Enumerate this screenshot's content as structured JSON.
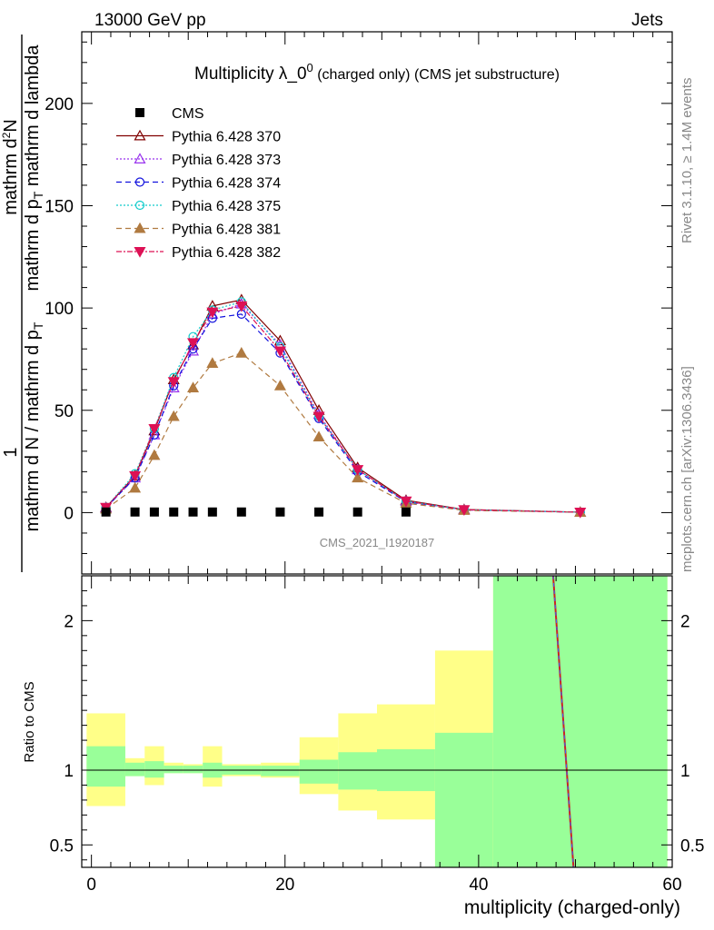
{
  "header": {
    "left": "13000 GeV pp",
    "right": "Jets"
  },
  "side_text": {
    "rivet": "Rivet 3.1.10, ≥ 1.4M events",
    "mcplots": "mcplots.cern.ch [arXiv:1306.3436]"
  },
  "watermark": "CMS_2021_I1920187",
  "chart_data": [
    {
      "type": "line",
      "title_main": "Multiplicity λ_0",
      "title_sup": "0",
      "title_small": " (charged only) (CMS jet substructure)",
      "ylabel": "1/(mathrm d N / mathrm d p_T) mathrm d²N/(mathrm d p_T mathrm d lambda)",
      "ylabel_numer_1": "1",
      "ylabel_denom_1": "mathrm d N / mathrm d p",
      "ylabel_numer_2": "mathrm d",
      "ylabel_numer_2_sup": "2",
      "ylabel_numer_2_tail": "N",
      "ylabel_denom_2": "mathrm d p",
      "ylabel_denom_2_tail": "mathrm d lambda",
      "sub_T": "T",
      "xlim": [
        -1,
        60
      ],
      "ylim": [
        -30,
        235
      ],
      "yticks": [
        0,
        50,
        100,
        150,
        200
      ],
      "series": [
        {
          "name": "CMS",
          "color": "#000000",
          "marker": "filled-square",
          "x": [
            1.5,
            4.5,
            6.5,
            8.5,
            10.5,
            12.5,
            15.5,
            19.5,
            23.5,
            27.5,
            32.5
          ],
          "y": [
            0.3,
            0.3,
            0.3,
            0.3,
            0.3,
            0.3,
            0.3,
            0.3,
            0.3,
            0.3,
            0.3
          ]
        },
        {
          "name": "Pythia 6.428 370",
          "color": "#800000",
          "marker": "open-triangle-up",
          "dash": "",
          "x": [
            1.5,
            4.5,
            6.5,
            8.5,
            10.5,
            12.5,
            15.5,
            19.5,
            23.5,
            27.5,
            32.5,
            38.5,
            50.5
          ],
          "y": [
            2.5,
            18,
            40,
            65,
            82,
            101,
            104,
            84,
            50,
            22,
            6,
            1.5,
            0.2
          ]
        },
        {
          "name": "Pythia 6.428 373",
          "color": "#9933ee",
          "marker": "open-triangle-up",
          "dash": "2,2",
          "x": [
            1.5,
            4.5,
            6.5,
            8.5,
            10.5,
            12.5,
            15.5,
            19.5,
            23.5,
            27.5,
            32.5,
            38.5,
            50.5
          ],
          "y": [
            2.3,
            17,
            38,
            61,
            79,
            97,
            102,
            82,
            48,
            21,
            5.5,
            1.3,
            0.2
          ]
        },
        {
          "name": "Pythia 6.428 374",
          "color": "#1111dd",
          "marker": "open-circle",
          "dash": "6,4",
          "x": [
            1.5,
            4.5,
            6.5,
            8.5,
            10.5,
            12.5,
            15.5,
            19.5,
            23.5,
            27.5,
            32.5,
            38.5,
            50.5
          ],
          "y": [
            2.4,
            17,
            38,
            62,
            80,
            95,
            97,
            78,
            46,
            20,
            5.3,
            1.3,
            0.2
          ]
        },
        {
          "name": "Pythia 6.428 375",
          "color": "#11cccc",
          "marker": "open-circle",
          "dash": "2,2",
          "x": [
            1.5,
            4.5,
            6.5,
            8.5,
            10.5,
            12.5,
            15.5,
            19.5,
            23.5,
            27.5,
            32.5,
            38.5,
            50.5
          ],
          "y": [
            2.6,
            19,
            41,
            66,
            86,
            99,
            103,
            81,
            47,
            21,
            5.6,
            1.4,
            0.2
          ]
        },
        {
          "name": "Pythia 6.428 381",
          "color": "#b07a40",
          "marker": "filled-triangle-up",
          "dash": "6,4",
          "x": [
            1.5,
            4.5,
            6.5,
            8.5,
            10.5,
            12.5,
            15.5,
            19.5,
            23.5,
            27.5,
            32.5,
            38.5,
            50.5
          ],
          "y": [
            1.8,
            12,
            28,
            47,
            61,
            73,
            78,
            62,
            37,
            17,
            4.6,
            1.1,
            0.2
          ]
        },
        {
          "name": "Pythia 6.428 382",
          "color": "#dd1155",
          "marker": "filled-triangle-down",
          "dash": "6,2,2,2",
          "x": [
            1.5,
            4.5,
            6.5,
            8.5,
            10.5,
            12.5,
            15.5,
            19.5,
            23.5,
            27.5,
            32.5,
            38.5,
            50.5
          ],
          "y": [
            2.5,
            18,
            41,
            64,
            83,
            98,
            101,
            79,
            47,
            21,
            5.6,
            1.4,
            0.2
          ]
        }
      ]
    },
    {
      "type": "area",
      "ylabel": "Ratio to CMS",
      "xlabel": "multiplicity (charged-only)",
      "xlim": [
        -1,
        60
      ],
      "ylim": [
        0.35,
        2.3
      ],
      "xticks": [
        0,
        20,
        40,
        60
      ],
      "yticks": [
        0.5,
        1,
        2
      ],
      "yticklabels": [
        "0.5",
        "1",
        "2"
      ],
      "bands": {
        "x_edges": [
          -0.5,
          3.5,
          5.5,
          7.5,
          9.5,
          11.5,
          13.5,
          17.5,
          21.5,
          25.5,
          29.5,
          35.5,
          41.5,
          59.5
        ],
        "stat_color": "#99ff99",
        "total_color": "#ffff88",
        "stat_lo": [
          0.89,
          0.96,
          0.95,
          0.98,
          0.98,
          0.95,
          0.97,
          0.96,
          0.91,
          0.87,
          0.86,
          0.35,
          0.35
        ],
        "stat_hi": [
          1.16,
          1.05,
          1.06,
          1.03,
          1.03,
          1.05,
          1.03,
          1.03,
          1.07,
          1.12,
          1.14,
          1.25,
          2.3
        ],
        "total_lo": [
          0.76,
          0.96,
          0.9,
          0.98,
          0.98,
          0.89,
          0.96,
          0.95,
          0.84,
          0.73,
          0.67,
          0.35,
          0.35
        ],
        "total_hi": [
          1.38,
          1.08,
          1.16,
          1.05,
          1.04,
          1.16,
          1.04,
          1.05,
          1.22,
          1.38,
          1.44,
          1.8,
          2.3
        ]
      },
      "steep_line": {
        "color": "#cc2222",
        "color2": "#3366ff",
        "x": [
          47.7,
          49.8
        ],
        "y": [
          2.3,
          0.35
        ]
      }
    }
  ]
}
